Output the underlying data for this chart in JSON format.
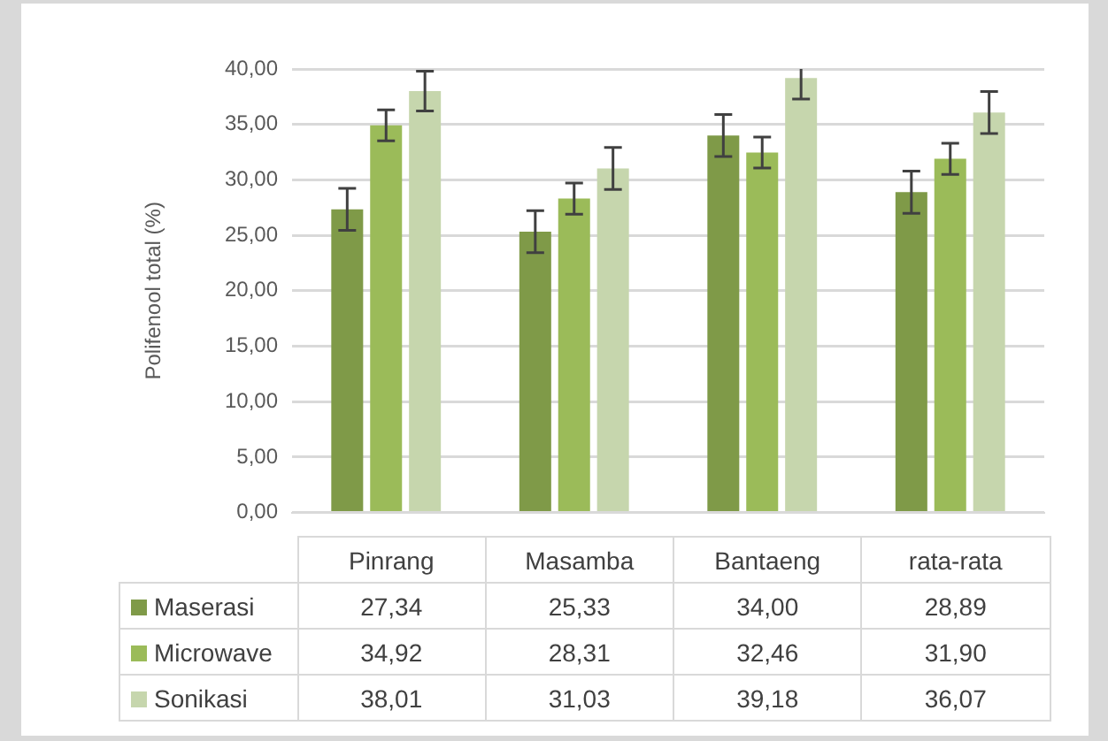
{
  "chart_data": {
    "type": "bar",
    "ylabel": "Polifenool total (%)",
    "categories": [
      "Pinrang",
      "Masamba",
      "Bantaeng",
      "rata-rata"
    ],
    "series": [
      {
        "name": "Maserasi",
        "color": "#7f9a48",
        "values": [
          27.34,
          25.33,
          34.0,
          28.89
        ],
        "errors": [
          1.9,
          1.9,
          1.9,
          1.9
        ],
        "value_labels": [
          "27,34",
          "25,33",
          "34,00",
          "28,89"
        ]
      },
      {
        "name": "Microwave",
        "color": "#9bbb59",
        "values": [
          34.92,
          28.31,
          32.46,
          31.9
        ],
        "errors": [
          1.4,
          1.4,
          1.4,
          1.4
        ],
        "value_labels": [
          "34,92",
          "28,31",
          "32,46",
          "31,90"
        ]
      },
      {
        "name": "Sonikasi",
        "color": "#c6d6ad",
        "values": [
          38.01,
          31.03,
          39.18,
          36.07
        ],
        "errors": [
          1.8,
          1.9,
          [
            37.28,
            40
          ],
          1.9
        ],
        "value_labels": [
          "38,01",
          "31,03",
          "39,18",
          "36,07"
        ]
      }
    ],
    "ylim": [
      0,
      40
    ],
    "yticks": [
      {
        "value": 0,
        "label": "0,00"
      },
      {
        "value": 5,
        "label": "5,00"
      },
      {
        "value": 10,
        "label": "10,00"
      },
      {
        "value": 15,
        "label": "15,00"
      },
      {
        "value": 20,
        "label": "20,00"
      },
      {
        "value": 25,
        "label": "25,00"
      },
      {
        "value": 30,
        "label": "30,00"
      },
      {
        "value": 35,
        "label": "35,00"
      },
      {
        "value": 40,
        "label": "40,00"
      }
    ],
    "grid": "y",
    "legend": "bottom"
  }
}
